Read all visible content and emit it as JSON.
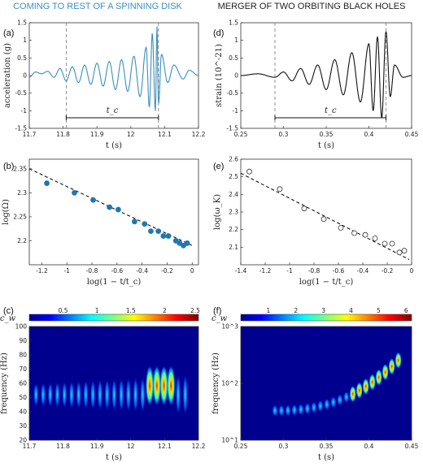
{
  "colors": {
    "left_title": "#3a8fc0",
    "right_title": "#222222",
    "scatter_fill": "#1f77b4",
    "axis": "#333333"
  },
  "headers": {
    "left": "COMING TO REST OF A SPINNING DISK",
    "right": "MERGER OF TWO ORBITING BLACK HOLES"
  },
  "chart_data": [
    {
      "panel": "(a)",
      "type": "line",
      "xlabel": "t (s)",
      "ylabel": "acceleration (g)",
      "xlim": [
        11.7,
        12.25
      ],
      "ylim": [
        -1.5,
        1.5
      ],
      "xticks": [
        "11.7",
        "11.8",
        "11.9",
        "12",
        "12.1",
        "12.2"
      ],
      "yticks": [
        "-1.5",
        "-1",
        "-0.5",
        "0",
        "0.5",
        "1",
        "1.5"
      ],
      "annotation": "t_c",
      "tc_start": 11.82,
      "tc_end": 12.12,
      "series": [
        {
          "x": [
            11.7,
            11.72,
            11.74,
            11.76,
            11.78,
            11.8,
            11.82,
            11.84,
            11.86,
            11.88,
            11.9,
            11.92,
            11.94,
            11.96,
            11.98,
            12.0,
            12.02,
            12.04,
            12.06,
            12.08,
            12.09,
            12.1,
            12.11,
            12.115,
            12.12,
            12.13,
            12.15,
            12.17,
            12.2,
            12.22,
            12.25
          ],
          "y": [
            -0.05,
            0.1,
            0.05,
            0.12,
            -0.05,
            0.2,
            -0.15,
            0.25,
            -0.2,
            0.3,
            -0.25,
            0.35,
            -0.3,
            0.4,
            -0.4,
            0.45,
            -0.45,
            0.55,
            -0.6,
            0.8,
            -0.9,
            1.2,
            -1.0,
            1.4,
            -0.8,
            0.6,
            -0.2,
            0.3,
            -0.1,
            0.15,
            0.0
          ]
        }
      ]
    },
    {
      "panel": "(d)",
      "type": "line",
      "xlabel": "t (s)",
      "ylabel": "strain (10^-21)",
      "xlim": [
        0.25,
        0.45
      ],
      "ylim": [
        -1.5,
        1.5
      ],
      "xticks": [
        "0.25",
        "0.3",
        "0.35",
        "0.4",
        "0.45"
      ],
      "yticks": [
        "-1.5",
        "-1",
        "-0.5",
        "0",
        "0.5",
        "1",
        "1.5"
      ],
      "annotation": "t_c",
      "tc_start": 0.29,
      "tc_end": 0.42,
      "series": [
        {
          "x": [
            0.25,
            0.27,
            0.29,
            0.3,
            0.31,
            0.32,
            0.33,
            0.34,
            0.35,
            0.36,
            0.37,
            0.38,
            0.39,
            0.4,
            0.405,
            0.41,
            0.415,
            0.42,
            0.425,
            0.43,
            0.44,
            0.45
          ],
          "y": [
            0.0,
            0.05,
            -0.05,
            0.1,
            -0.15,
            0.2,
            -0.25,
            0.3,
            -0.4,
            0.45,
            -0.55,
            0.65,
            -0.75,
            0.9,
            -1.0,
            1.1,
            -1.2,
            1.25,
            -0.6,
            0.3,
            -0.05,
            0.0
          ]
        }
      ]
    },
    {
      "panel": "(b)",
      "type": "scatter",
      "xlabel": "log(1 − t/t_c)",
      "ylabel": "log(Ω)",
      "xlim": [
        -1.3,
        0.05
      ],
      "ylim": [
        2.15,
        2.37
      ],
      "xticks": [
        "-1.2",
        "-1",
        "-0.8",
        "-0.6",
        "-0.4",
        "-0.2",
        "0"
      ],
      "yticks": [
        "2.2",
        "2.25",
        "2.3",
        "2.35"
      ],
      "points_x": [
        -1.16,
        -0.94,
        -0.79,
        -0.66,
        -0.59,
        -0.46,
        -0.38,
        -0.33,
        -0.27,
        -0.23,
        -0.19,
        -0.13,
        -0.1,
        -0.07,
        -0.04
      ],
      "points_y": [
        2.32,
        2.3,
        2.285,
        2.27,
        2.265,
        2.24,
        2.235,
        2.22,
        2.22,
        2.21,
        2.21,
        2.2,
        2.195,
        2.19,
        2.195
      ],
      "fit_x": [
        -1.3,
        0.0
      ],
      "fit_y": [
        2.35,
        2.19
      ]
    },
    {
      "panel": "(e)",
      "type": "scatter",
      "xlabel": "log(1 − t/t_c)",
      "ylabel": "log(ω_K)",
      "xlim": [
        -1.4,
        0.0
      ],
      "ylim": [
        2.0,
        2.6
      ],
      "xticks": [
        "-1.4",
        "-1.2",
        "-1",
        "-0.8",
        "-0.6",
        "-0.4",
        "-0.2",
        "0"
      ],
      "yticks": [
        "2.1",
        "2.2",
        "2.3",
        "2.4",
        "2.5",
        "2.6"
      ],
      "points_x": [
        -1.33,
        -1.08,
        -0.88,
        -0.72,
        -0.58,
        -0.47,
        -0.38,
        -0.3,
        -0.22,
        -0.16,
        -0.1,
        -0.06
      ],
      "points_y": [
        2.53,
        2.43,
        2.32,
        2.26,
        2.21,
        2.18,
        2.17,
        2.15,
        2.12,
        2.12,
        2.07,
        2.08
      ],
      "fit_x": [
        -1.4,
        -0.02
      ],
      "fit_y": [
        2.52,
        2.03
      ]
    },
    {
      "panel": "(c)",
      "type": "heatmap",
      "colorbar_label": "c_w",
      "colorbar_ticks": [
        "0.5",
        "1",
        "1.5",
        "2",
        "2.5"
      ],
      "xlabel": "t (s)",
      "ylabel": "frequency (Hz)",
      "xticks": [
        "11.7",
        "11.8",
        "11.9",
        "12",
        "12.1",
        "12.2"
      ],
      "yticks": [
        "20",
        "30",
        "40",
        "50",
        "60",
        "70",
        "80",
        "90",
        "100"
      ]
    },
    {
      "panel": "(f)",
      "type": "heatmap",
      "colorbar_label": "c_w",
      "colorbar_ticks": [
        "1",
        "2",
        "3",
        "4",
        "5",
        "6"
      ],
      "xlabel": "t (s)",
      "ylabel": "frequency (Hz)",
      "xticks": [
        "0.25",
        "0.3",
        "0.35",
        "0.4",
        "0.45"
      ],
      "yticks": [
        "10^1",
        "10^2",
        "10^3"
      ]
    }
  ]
}
